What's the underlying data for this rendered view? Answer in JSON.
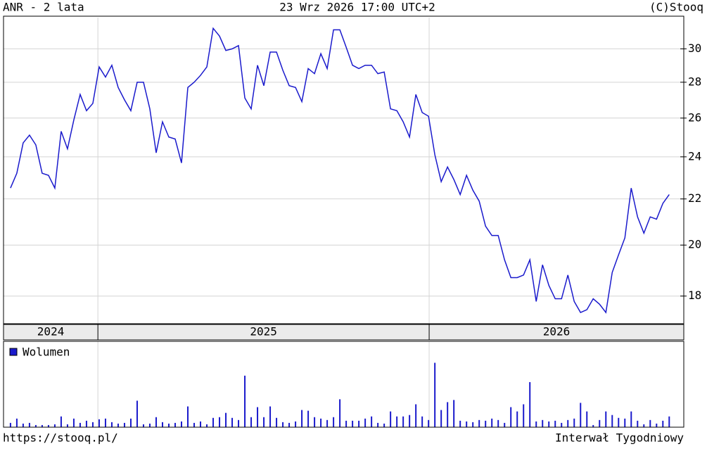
{
  "header": {
    "title": "ANR - 2 lata",
    "date": "23 Wrz 2026 17:00 UTC+2",
    "source": "(C)Stooq"
  },
  "footer": {
    "url": "https://stooq.pl/",
    "interval": "Interwał Tygodniowy"
  },
  "chart_data": [
    {
      "type": "line",
      "color": "#1a1acc",
      "log_scale": true,
      "grid": true,
      "ylim": [
        17,
        32
      ],
      "yticks": [
        18,
        20,
        22,
        24,
        26,
        28,
        30
      ],
      "xlim": [
        -1.1,
        106.3
      ],
      "xticks": [
        13.8,
        66.1
      ],
      "year_labels": [
        "2024",
        "2025",
        "2026"
      ],
      "values": [
        22.5,
        23.2,
        24.7,
        25.1,
        24.6,
        23.2,
        23.1,
        22.5,
        25.3,
        24.4,
        25.9,
        27.3,
        26.4,
        26.8,
        28.9,
        28.3,
        29.0,
        27.7,
        27.0,
        26.4,
        28.0,
        28.0,
        26.5,
        24.2,
        25.8,
        25.0,
        24.9,
        23.7,
        27.7,
        28.0,
        28.4,
        28.9,
        31.3,
        30.8,
        29.9,
        30.0,
        30.2,
        27.1,
        26.5,
        29.0,
        27.8,
        29.8,
        29.8,
        28.7,
        27.8,
        27.7,
        26.9,
        28.8,
        28.5,
        29.7,
        28.8,
        31.2,
        31.2,
        30.1,
        29.0,
        28.8,
        29.0,
        29.0,
        28.5,
        28.6,
        26.5,
        26.4,
        25.8,
        25.0,
        27.3,
        26.3,
        26.1,
        24.1,
        22.8,
        23.5,
        22.9,
        22.2,
        23.1,
        22.4,
        21.9,
        20.8,
        20.4,
        20.4,
        19.4,
        18.7,
        18.7,
        18.8,
        19.4,
        17.8,
        19.2,
        18.4,
        17.9,
        17.9,
        18.8,
        17.8,
        17.4,
        17.5,
        17.9,
        17.7,
        17.4,
        18.9,
        19.6,
        20.3,
        22.5,
        21.2,
        20.5,
        21.2,
        21.1,
        21.8,
        22.2
      ]
    },
    {
      "type": "bar",
      "grid": true,
      "ylim": [
        0,
        120
      ],
      "xlim": [
        -1.1,
        106.3
      ],
      "xticks": [
        13.8,
        66.1
      ],
      "series": [
        {
          "name": "Wolumen",
          "color": "#1a1acc",
          "values": [
            6,
            12,
            5,
            6,
            3,
            3,
            3,
            4,
            15,
            4,
            12,
            6,
            9,
            7,
            11,
            12,
            7,
            5,
            6,
            12,
            37,
            4,
            5,
            14,
            7,
            5,
            6,
            8,
            29,
            6,
            8,
            4,
            13,
            14,
            20,
            13,
            10,
            72,
            14,
            28,
            14,
            29,
            13,
            7,
            6,
            8,
            24,
            23,
            14,
            12,
            10,
            14,
            39,
            9,
            9,
            9,
            12,
            15,
            6,
            5,
            22,
            15,
            15,
            17,
            32,
            15,
            10,
            90,
            24,
            35,
            38,
            9,
            8,
            7,
            10,
            9,
            12,
            10,
            6,
            28,
            22,
            32,
            63,
            8,
            10,
            8,
            9,
            6,
            10,
            12,
            34,
            22,
            3,
            10,
            22,
            17,
            13,
            12,
            22,
            9,
            4,
            10,
            5,
            9,
            15
          ]
        }
      ]
    }
  ]
}
